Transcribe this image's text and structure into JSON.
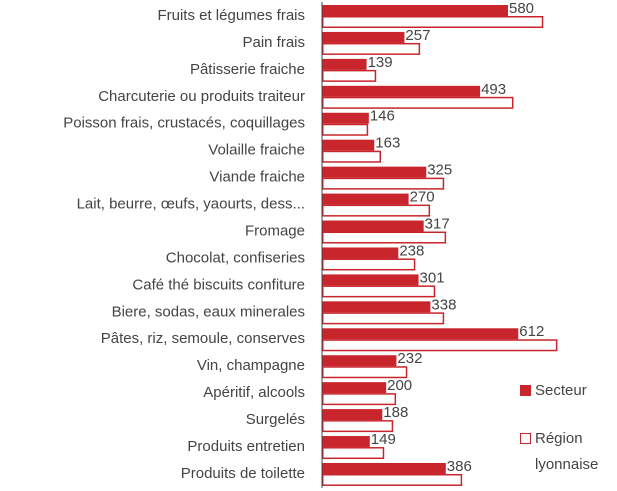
{
  "chart_data": {
    "type": "bar",
    "orientation": "horizontal",
    "categories": [
      "Fruits et légumes frais",
      "Pain frais",
      "Pâtisserie fraiche",
      "Charcuterie ou produits traiteur",
      "Poisson frais, crustacés, coquillages",
      "Volaille fraiche",
      "Viande fraiche",
      "Lait, beurre, œufs, yaourts, dess...",
      "Fromage",
      "Chocolat, confiseries",
      "Café thé biscuits confiture",
      "Biere, sodas, eaux minerales",
      "Pâtes, riz, semoule, conserves",
      "Vin, champagne",
      "Apéritif, alcools",
      "Surgelés",
      "Produits entretien",
      "Produits de toilette"
    ],
    "series": [
      {
        "name": "Secteur",
        "color": "#c9252c",
        "fill": true,
        "labels": true,
        "values": [
          580,
          257,
          139,
          493,
          146,
          163,
          325,
          270,
          317,
          238,
          301,
          338,
          612,
          232,
          200,
          188,
          149,
          386
        ]
      },
      {
        "name": "Région lyonnaise",
        "color": "#c9252c",
        "fill": false,
        "labels": false,
        "values": [
          690,
          306,
          169,
          597,
          144,
          184,
          381,
          337,
          387,
          291,
          353,
          381,
          734,
          266,
          231,
          222,
          194,
          437
        ]
      }
    ],
    "legend": "right"
  }
}
